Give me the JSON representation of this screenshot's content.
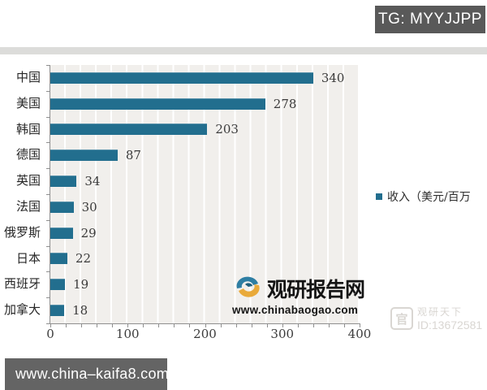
{
  "header": {
    "tg_label": "TG: MYYJJPP"
  },
  "chart_data": {
    "type": "bar",
    "orientation": "horizontal",
    "categories": [
      "中国",
      "美国",
      "韩国",
      "德国",
      "英国",
      "法国",
      "俄罗斯",
      "日本",
      "西班牙",
      "加拿大"
    ],
    "values": [
      340,
      278,
      203,
      87,
      34,
      30,
      29,
      22,
      19,
      18
    ],
    "title": "",
    "xlabel": "",
    "ylabel": "",
    "xlim": [
      0,
      400
    ],
    "x_ticks": [
      0,
      100,
      200,
      300,
      400
    ],
    "minor_tick_step": 20,
    "grid": true,
    "legend_position": "right",
    "legend": "收入（美元/百万",
    "bar_color": "#226e8e",
    "plot_background": "#f1efec"
  },
  "brand_watermark": {
    "logo": "swirl-logo",
    "name": "观研报告网",
    "url": "www.chinabaogao.com"
  },
  "corner_watermark": {
    "logo_glyph": "官",
    "name": "观研天下",
    "id": "ID:13672581"
  },
  "footer": {
    "url": "www.china–kaifa8.com"
  }
}
